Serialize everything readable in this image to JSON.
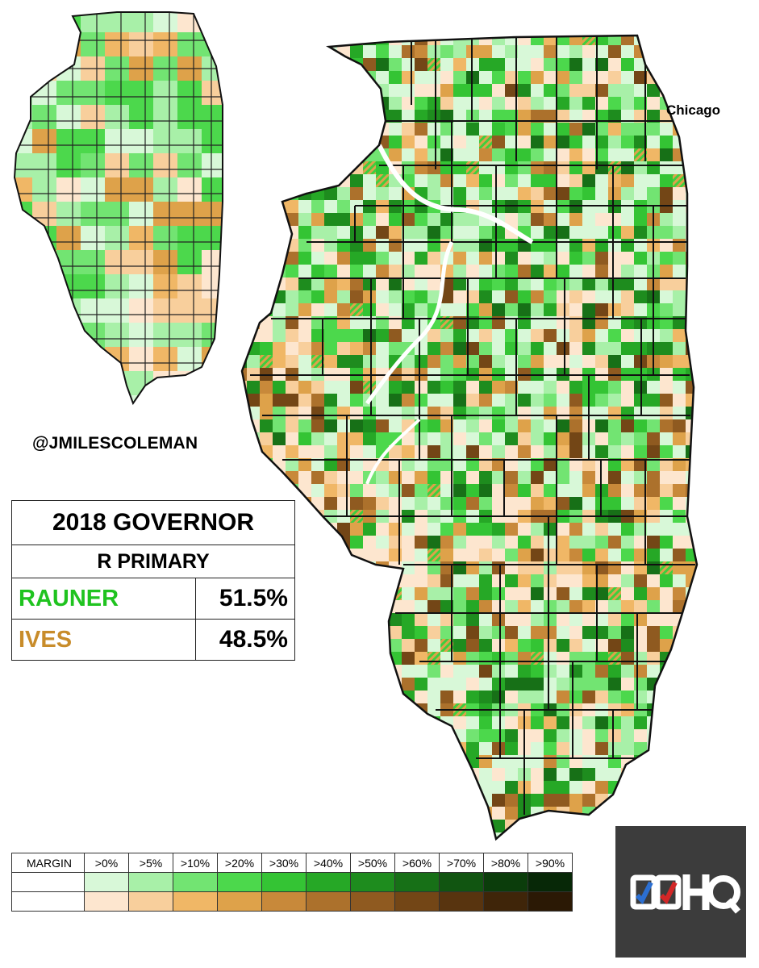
{
  "map_labels": {
    "city": "Chicago",
    "credit": "@JMILESCOLEMAN"
  },
  "results": {
    "title": "2018 GOVERNOR",
    "subtitle": "R PRIMARY",
    "candidates": [
      {
        "name": "RAUNER",
        "pct": "51.5%",
        "color": "#1fc31f"
      },
      {
        "name": "IVES",
        "pct": "48.5%",
        "color": "#c88c2a"
      }
    ]
  },
  "legend": {
    "header": "MARGIN",
    "bins": [
      ">0%",
      ">5%",
      ">10%",
      ">20%",
      ">30%",
      ">40%",
      ">50%",
      ">60%",
      ">70%",
      ">80%",
      ">90%"
    ],
    "rauner_colors": [
      "#d8f8d8",
      "#a8f0a8",
      "#72e472",
      "#4cd84c",
      "#34c434",
      "#26a826",
      "#1e8c1e",
      "#177017",
      "#115511",
      "#0b3d0b",
      "#072807"
    ],
    "ives_colors": [
      "#fde6cf",
      "#f8cf9c",
      "#f0b766",
      "#dea24a",
      "#c8893a",
      "#ac712c",
      "#8f5a20",
      "#734616",
      "#58340f",
      "#3f2509",
      "#2b1905"
    ]
  },
  "logo": {
    "text": "DDHQ",
    "background": "#3c3c3c",
    "check_colors": [
      "#2c6fd1",
      "#d22727"
    ]
  }
}
